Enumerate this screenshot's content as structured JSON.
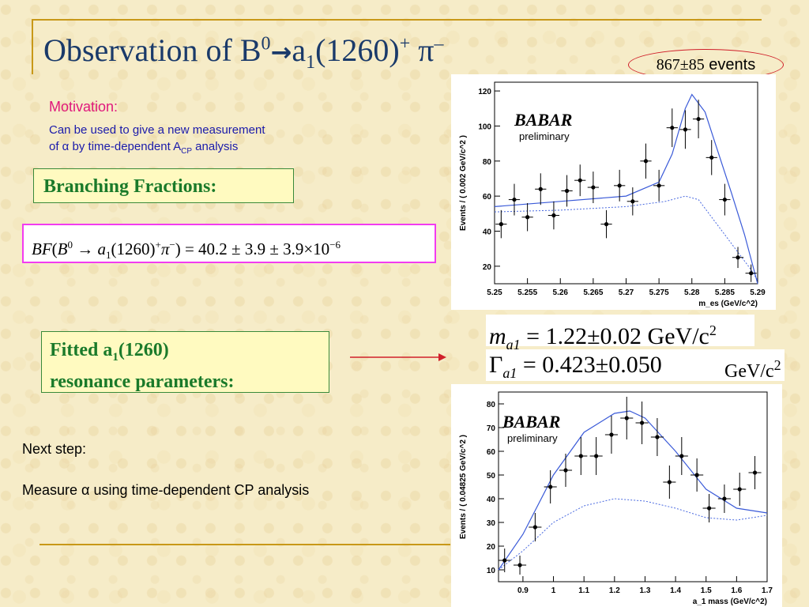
{
  "slide": {
    "title_prefix": "Observation of B",
    "title_b_sup": "0",
    "title_arrow": "→",
    "title_a": "a",
    "title_a_sub": "1",
    "title_mass": "(1260)",
    "title_a_sup": "+",
    "title_pi": "π",
    "title_pi_sup": "–",
    "events_num": "867±85",
    "events_word": "events",
    "motivation_label": "Motivation:",
    "motivation_line1": "Can be used to give a new measurement",
    "motivation_line2_pre": "of α by time-dependent A",
    "motivation_line2_sub": "CP",
    "motivation_line2_post": " analysis",
    "bf_label": "Branching Fractions:",
    "formula": {
      "lhs": "BF",
      "b": "B",
      "b_sup": "0",
      "arrow": "→",
      "a": "a",
      "a_sub": "1",
      "mass": "(1260)",
      "a_sup": "+",
      "pi": "π",
      "pi_sup": "−",
      "rhs": ") = 40.2 ± 3.9 ± 3.9×10",
      "exp": "−6"
    },
    "fit_label_line1_pre": "Fitted a",
    "fit_label_sub": "1",
    "fit_label_line1_post": "(1260)",
    "fit_label_line2": "resonance parameters:",
    "param_m_sym": "m",
    "param_m_sub": "a1",
    "param_m_val": " = 1.22±0.02  GeV/c",
    "param_m_sup": "2",
    "param_g_sym": "Γ",
    "param_g_sub": "a1",
    "param_g_val": " = 0.423±0.050",
    "param_g_unit": "GeV/c",
    "param_g_sup": "2",
    "next_step": "Next step:",
    "measure": "Measure α using time-dependent CP analysis",
    "colors": {
      "title": "#1a3a6a",
      "motivation": "#e0187c",
      "box_text": "#1a7a2a",
      "rule": "#c89818",
      "fit_curve": "#3a5ad8"
    }
  },
  "chart_data": [
    {
      "type": "scatter",
      "logo": "BABAR",
      "logo_sub": "preliminary",
      "xlabel": "m_es (GeV/c^2)",
      "ylabel": "Events / ( 0.002 GeV/c^2 )",
      "xlim": [
        5.25,
        5.29
      ],
      "ylim": [
        10,
        125
      ],
      "xticks": [
        "5.25",
        "5.255",
        "5.26",
        "5.265",
        "5.27",
        "5.275",
        "5.28",
        "5.285",
        "5.29"
      ],
      "yticks": [
        "20",
        "40",
        "60",
        "80",
        "100",
        "120"
      ],
      "points": [
        [
          5.251,
          44
        ],
        [
          5.253,
          58
        ],
        [
          5.255,
          48
        ],
        [
          5.257,
          64
        ],
        [
          5.259,
          49
        ],
        [
          5.261,
          63
        ],
        [
          5.263,
          69
        ],
        [
          5.265,
          65
        ],
        [
          5.267,
          44
        ],
        [
          5.269,
          66
        ],
        [
          5.271,
          57
        ],
        [
          5.273,
          80
        ],
        [
          5.275,
          66
        ],
        [
          5.277,
          99
        ],
        [
          5.279,
          98
        ],
        [
          5.281,
          104
        ],
        [
          5.283,
          82
        ],
        [
          5.285,
          58
        ],
        [
          5.287,
          25
        ],
        [
          5.289,
          16
        ]
      ],
      "errors": [
        8,
        9,
        8,
        9,
        8,
        9,
        9,
        9,
        8,
        9,
        8,
        10,
        9,
        11,
        11,
        11,
        10,
        9,
        6,
        5
      ],
      "fit_total": [
        [
          5.25,
          54
        ],
        [
          5.26,
          57
        ],
        [
          5.27,
          60
        ],
        [
          5.275,
          68
        ],
        [
          5.277,
          84
        ],
        [
          5.279,
          110
        ],
        [
          5.28,
          118
        ],
        [
          5.282,
          108
        ],
        [
          5.284,
          85
        ],
        [
          5.286,
          62
        ],
        [
          5.288,
          38
        ],
        [
          5.29,
          10
        ]
      ],
      "fit_background": [
        [
          5.25,
          51
        ],
        [
          5.26,
          52
        ],
        [
          5.27,
          54
        ],
        [
          5.276,
          57
        ],
        [
          5.279,
          60
        ],
        [
          5.281,
          58
        ],
        [
          5.283,
          48
        ],
        [
          5.285,
          38
        ],
        [
          5.287,
          28
        ],
        [
          5.289,
          18
        ],
        [
          5.29,
          12
        ]
      ]
    },
    {
      "type": "scatter",
      "logo": "BABAR",
      "logo_sub": "preliminary",
      "xlabel": "a_1 mass (GeV/c^2)",
      "ylabel": "Events / ( 0.04825 GeV/c^2 )",
      "xlim": [
        0.82,
        1.7
      ],
      "ylim": [
        5,
        85
      ],
      "xticks": [
        "0.9",
        "1",
        "1.1",
        "1.2",
        "1.3",
        "1.4",
        "1.5",
        "1.6",
        "1.7"
      ],
      "yticks": [
        "10",
        "20",
        "30",
        "40",
        "50",
        "60",
        "70",
        "80"
      ],
      "points": [
        [
          0.84,
          14
        ],
        [
          0.89,
          12
        ],
        [
          0.94,
          28
        ],
        [
          0.99,
          45
        ],
        [
          1.04,
          52
        ],
        [
          1.09,
          58
        ],
        [
          1.14,
          58
        ],
        [
          1.19,
          67
        ],
        [
          1.24,
          74
        ],
        [
          1.29,
          72
        ],
        [
          1.34,
          66
        ],
        [
          1.38,
          47
        ],
        [
          1.42,
          58
        ],
        [
          1.47,
          50
        ],
        [
          1.51,
          36
        ],
        [
          1.56,
          40
        ],
        [
          1.61,
          44
        ],
        [
          1.66,
          51
        ]
      ],
      "errors": [
        5,
        4,
        6,
        7,
        7,
        8,
        8,
        8,
        9,
        9,
        8,
        7,
        8,
        7,
        6,
        6,
        7,
        7
      ],
      "fit_total": [
        [
          0.82,
          10
        ],
        [
          0.9,
          25
        ],
        [
          1.0,
          50
        ],
        [
          1.1,
          68
        ],
        [
          1.2,
          76
        ],
        [
          1.25,
          77
        ],
        [
          1.3,
          74
        ],
        [
          1.4,
          60
        ],
        [
          1.5,
          44
        ],
        [
          1.6,
          36
        ],
        [
          1.7,
          34
        ]
      ],
      "fit_background": [
        [
          0.82,
          10
        ],
        [
          0.9,
          18
        ],
        [
          1.0,
          30
        ],
        [
          1.1,
          37
        ],
        [
          1.2,
          40
        ],
        [
          1.3,
          39
        ],
        [
          1.4,
          36
        ],
        [
          1.5,
          32
        ],
        [
          1.6,
          31
        ],
        [
          1.7,
          33
        ]
      ]
    }
  ]
}
